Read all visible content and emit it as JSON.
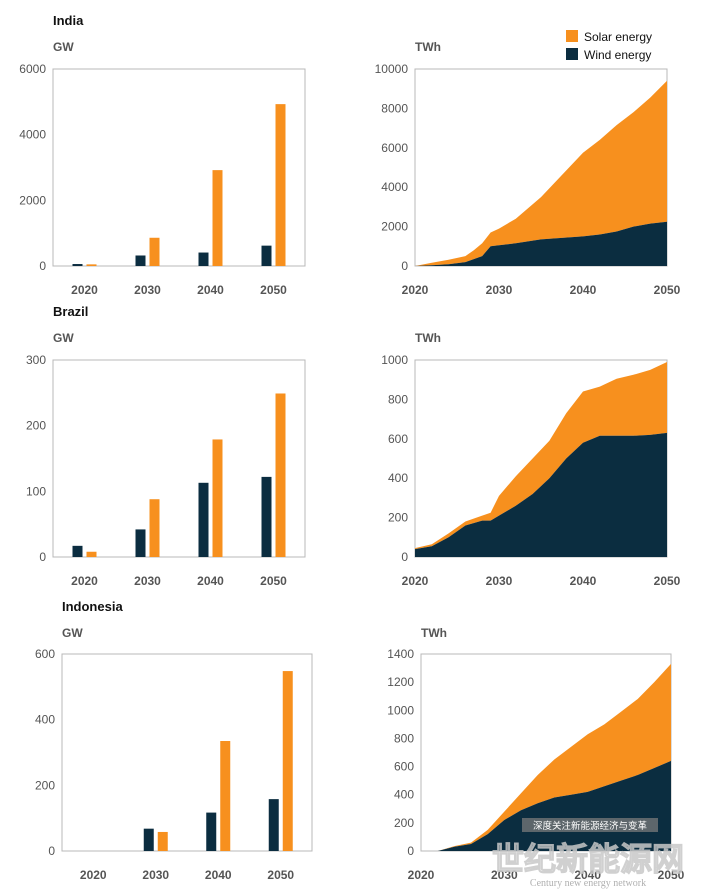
{
  "legend": {
    "items": [
      {
        "label": "Solar energy",
        "color": "#F7901E"
      },
      {
        "label": "Wind energy",
        "color": "#0B2D40"
      }
    ]
  },
  "watermark": {
    "badge": "深度关注新能源经济与变革",
    "logo_text": "世纪新能源网",
    "tagline": "Century new energy network"
  },
  "colors": {
    "solar": "#F7901E",
    "wind": "#0B2D40",
    "frame": "#b8b8b8",
    "tick": "#555555"
  },
  "chart_data": [
    {
      "type": "bar",
      "region": "India",
      "title": "India",
      "ylabel": "GW",
      "categories": [
        "2020",
        "2030",
        "2040",
        "2050"
      ],
      "ylim": [
        0,
        6000
      ],
      "yticks": [
        0,
        2000,
        4000,
        6000
      ],
      "series": [
        {
          "name": "Wind energy",
          "values": [
            60,
            320,
            410,
            620
          ]
        },
        {
          "name": "Solar energy",
          "values": [
            50,
            860,
            2920,
            4930
          ]
        }
      ]
    },
    {
      "type": "area",
      "region": "India",
      "ylabel": "TWh",
      "stacked": true,
      "xlim": [
        2020,
        2050
      ],
      "ylim": [
        0,
        10000
      ],
      "xticks": [
        2020,
        2030,
        2040,
        2050
      ],
      "yticks": [
        0,
        2000,
        4000,
        6000,
        8000,
        10000
      ],
      "x": [
        2020,
        2022,
        2024,
        2026,
        2027,
        2028,
        2029,
        2030,
        2032,
        2035,
        2040,
        2042,
        2044,
        2046,
        2048,
        2050
      ],
      "series": [
        {
          "name": "Wind energy",
          "values": [
            0,
            40,
            90,
            200,
            350,
            500,
            1000,
            1050,
            1150,
            1350,
            1500,
            1600,
            1750,
            2000,
            2150,
            2250
          ]
        },
        {
          "name": "Solar energy",
          "values": [
            0,
            120,
            230,
            300,
            450,
            650,
            700,
            850,
            1250,
            2150,
            4250,
            4800,
            5400,
            5800,
            6400,
            7150
          ]
        }
      ]
    },
    {
      "type": "bar",
      "region": "Brazil",
      "title": "Brazil",
      "ylabel": "GW",
      "categories": [
        "2020",
        "2030",
        "2040",
        "2050"
      ],
      "ylim": [
        0,
        300
      ],
      "yticks": [
        0,
        100,
        200,
        300
      ],
      "series": [
        {
          "name": "Wind energy",
          "values": [
            17,
            42,
            113,
            122
          ]
        },
        {
          "name": "Solar energy",
          "values": [
            8,
            88,
            179,
            249
          ]
        }
      ]
    },
    {
      "type": "area",
      "region": "Brazil",
      "ylabel": "TWh",
      "stacked": true,
      "xlim": [
        2020,
        2050
      ],
      "ylim": [
        0,
        1000
      ],
      "xticks": [
        2020,
        2030,
        2040,
        2050
      ],
      "yticks": [
        0,
        200,
        400,
        600,
        800,
        1000
      ],
      "x": [
        2020,
        2022,
        2024,
        2026,
        2028,
        2029,
        2030,
        2032,
        2034,
        2036,
        2038,
        2040,
        2042,
        2044,
        2046,
        2048,
        2050
      ],
      "series": [
        {
          "name": "Wind energy",
          "values": [
            40,
            55,
            100,
            160,
            185,
            185,
            210,
            260,
            320,
            400,
            500,
            580,
            615,
            615,
            615,
            620,
            630
          ]
        },
        {
          "name": "Solar energy",
          "values": [
            5,
            10,
            20,
            20,
            25,
            40,
            100,
            150,
            180,
            190,
            230,
            260,
            250,
            290,
            310,
            330,
            360
          ]
        }
      ]
    },
    {
      "type": "bar",
      "region": "Indonesia",
      "title": "Indonesia",
      "ylabel": "GW",
      "categories": [
        "2020",
        "2030",
        "2040",
        "2050"
      ],
      "ylim": [
        0,
        600
      ],
      "yticks": [
        0,
        200,
        400,
        600
      ],
      "series": [
        {
          "name": "Wind energy",
          "values": [
            0,
            68,
            117,
            158
          ]
        },
        {
          "name": "Solar energy",
          "values": [
            0,
            58,
            335,
            548
          ]
        }
      ]
    },
    {
      "type": "area",
      "region": "Indonesia",
      "ylabel": "TWh",
      "stacked": true,
      "xlim": [
        2020,
        2050
      ],
      "ylim": [
        0,
        1400
      ],
      "xticks": [
        2020,
        2030,
        2040,
        2050
      ],
      "yticks": [
        0,
        200,
        400,
        600,
        800,
        1000,
        1200,
        1400
      ],
      "x": [
        2020,
        2022,
        2024,
        2026,
        2028,
        2030,
        2032,
        2034,
        2036,
        2038,
        2040,
        2042,
        2044,
        2046,
        2048,
        2050
      ],
      "series": [
        {
          "name": "Wind energy",
          "values": [
            0,
            0,
            30,
            50,
            120,
            220,
            290,
            340,
            380,
            400,
            420,
            460,
            500,
            540,
            590,
            640
          ]
        },
        {
          "name": "Solar energy",
          "values": [
            0,
            0,
            5,
            10,
            30,
            60,
            120,
            200,
            270,
            340,
            410,
            440,
            490,
            540,
            610,
            690
          ]
        }
      ]
    }
  ]
}
